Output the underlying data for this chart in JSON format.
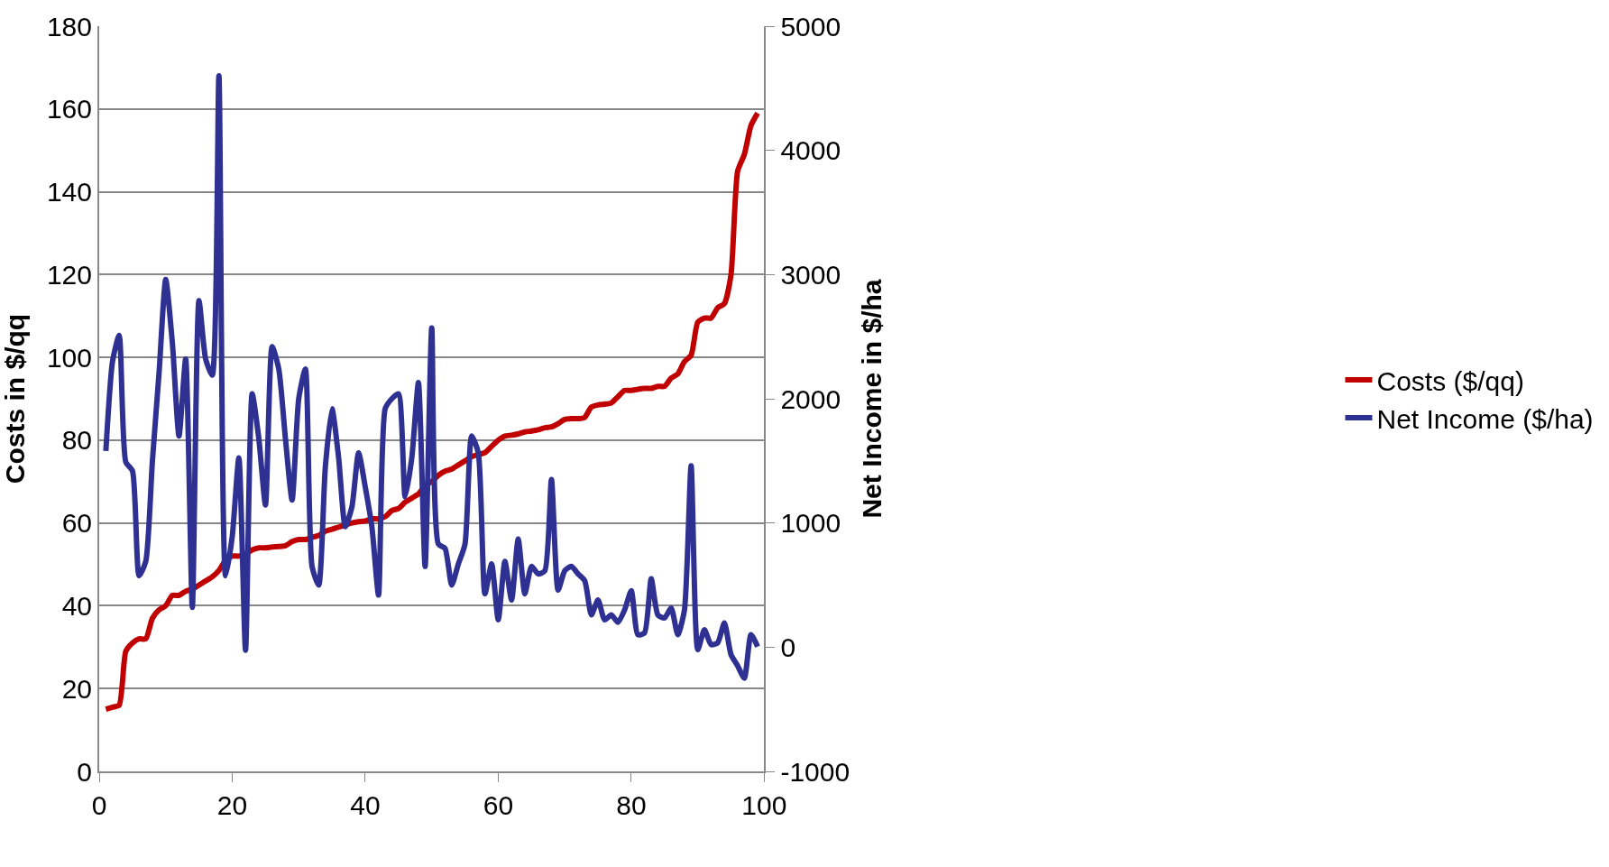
{
  "chart_data": {
    "type": "line",
    "xlabel": null,
    "ylabel": "Costs in $/qq",
    "y2label": "Net Income in $/ha",
    "x": [
      1,
      2,
      3,
      4,
      5,
      6,
      7,
      8,
      9,
      10,
      11,
      12,
      13,
      14,
      15,
      16,
      17,
      18,
      19,
      20,
      21,
      22,
      23,
      24,
      25,
      26,
      27,
      28,
      29,
      30,
      31,
      32,
      33,
      34,
      35,
      36,
      37,
      38,
      39,
      40,
      41,
      42,
      43,
      44,
      45,
      46,
      47,
      48,
      49,
      50,
      51,
      52,
      53,
      54,
      55,
      56,
      57,
      58,
      59,
      60,
      61,
      62,
      63,
      64,
      65,
      66,
      67,
      68,
      69,
      70,
      71,
      72,
      73,
      74,
      75,
      76,
      77,
      78,
      79,
      80,
      81,
      82,
      83,
      84,
      85,
      86,
      87,
      88,
      89,
      90,
      91,
      92,
      93,
      94,
      95,
      96,
      97,
      98,
      99
    ],
    "series": [
      {
        "name": "Costs ($/qq)",
        "color": "#c00000",
        "values": [
          15,
          15.5,
          16,
          29,
          31,
          32,
          32,
          37,
          39,
          40,
          42.5,
          42.5,
          43.5,
          44,
          45,
          46,
          47,
          48.5,
          51,
          52,
          52,
          52.5,
          53.5,
          54,
          54,
          54.2,
          54.3,
          54.5,
          55.5,
          56,
          56,
          56.5,
          57,
          58,
          58.5,
          59,
          59.5,
          60,
          60.3,
          60.5,
          61,
          61,
          61.5,
          63,
          63.5,
          65,
          66,
          67,
          69,
          70,
          71.5,
          72.5,
          73,
          74,
          75,
          76,
          76.5,
          77,
          78.5,
          80,
          81,
          81.2,
          81.5,
          82,
          82.2,
          82.5,
          83,
          83.2,
          84,
          85,
          85.2,
          85.2,
          85.5,
          88,
          88.5,
          88.7,
          89,
          90.5,
          92,
          92,
          92.3,
          92.5,
          92.5,
          93,
          93,
          95,
          96,
          99,
          100.5,
          108.5,
          109.5,
          109.5,
          112,
          113,
          120,
          145,
          149,
          156,
          159
        ]
      },
      {
        "name": "Net Income ($/ha)",
        "color": "#2e3192",
        "axis": "y2",
        "values": [
          1580,
          2300,
          2510,
          1490,
          1420,
          575,
          690,
          1500,
          2210,
          2960,
          2450,
          1700,
          2320,
          320,
          2790,
          2320,
          2190,
          4600,
          575,
          890,
          1525,
          -25,
          2040,
          1680,
          1145,
          2420,
          2240,
          1680,
          1185,
          2000,
          2240,
          650,
          500,
          1450,
          1920,
          1525,
          970,
          1130,
          1565,
          1290,
          970,
          420,
          1920,
          2000,
          2040,
          1210,
          1525,
          2130,
          650,
          2570,
          830,
          795,
          500,
          670,
          830,
          1700,
          1565,
          430,
          670,
          220,
          690,
          380,
          870,
          430,
          650,
          590,
          615,
          1350,
          460,
          615,
          650,
          590,
          535,
          260,
          380,
          220,
          260,
          200,
          300,
          455,
          100,
          115,
          550,
          260,
          235,
          315,
          100,
          300,
          1460,
          -20,
          140,
          20,
          35,
          195,
          -60,
          -150,
          -250,
          100,
          5
        ]
      }
    ],
    "xlim": [
      0,
      100
    ],
    "xticks": [
      0,
      20,
      40,
      60,
      80,
      100
    ],
    "ylim": [
      0,
      180
    ],
    "yticks": [
      0,
      20,
      40,
      60,
      80,
      100,
      120,
      140,
      160,
      180
    ],
    "y2lim": [
      -1000,
      5000
    ],
    "y2ticks": [
      -1000,
      0,
      1000,
      2000,
      3000,
      4000,
      5000
    ],
    "grid": "y",
    "legend": "right",
    "marker": "none",
    "line_style": "solid"
  }
}
